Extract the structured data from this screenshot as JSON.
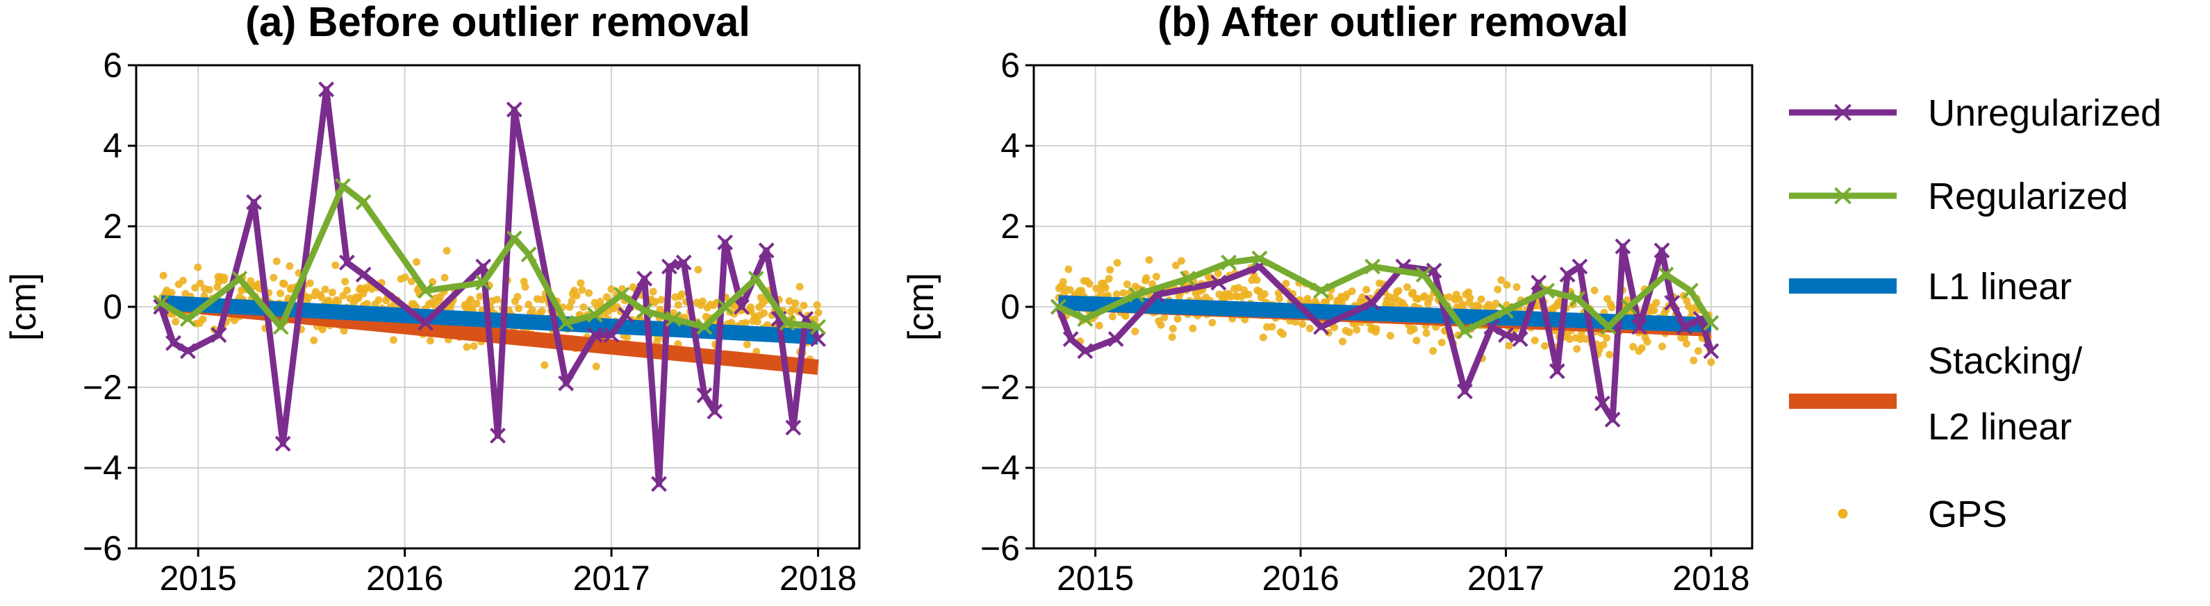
{
  "colors": {
    "unregularized": "#7b2d8e",
    "regularized": "#77ac30",
    "l1": "#0072bd",
    "l2": "#d95319",
    "gps": "#edb120",
    "grid": "#d3d3d3"
  },
  "legend": {
    "items": [
      {
        "key": "unregularized",
        "label": "Unregularized",
        "style": "line-x"
      },
      {
        "key": "regularized",
        "label": "Regularized",
        "style": "line-x"
      },
      {
        "key": "l1",
        "label": "L1 linear",
        "style": "thick"
      },
      {
        "key": "l2",
        "label_lines": [
          "Stacking/",
          "L2 linear"
        ],
        "style": "thick"
      },
      {
        "key": "gps",
        "label": "GPS",
        "style": "dot"
      }
    ]
  },
  "chart_data": [
    {
      "type": "line",
      "title": "(a) Before outlier removal",
      "ylabel": "[cm]",
      "xlim": [
        2014.7,
        2018.2
      ],
      "ylim": [
        -6,
        6
      ],
      "xticks": [
        2015,
        2016,
        2017,
        2018
      ],
      "yticks": [
        -6,
        -4,
        -2,
        0,
        2,
        4,
        6
      ],
      "xtick_labels": [
        "2015",
        "2016",
        "2017",
        "2018"
      ],
      "ytick_labels": [
        "−6",
        "−4",
        "−2",
        "0",
        "2",
        "4",
        "6"
      ],
      "grid": true,
      "series": [
        {
          "name": "Unregularized",
          "key": "unregularized",
          "marker": "x",
          "x": [
            2014.82,
            2014.88,
            2014.95,
            2015.1,
            2015.27,
            2015.41,
            2015.62,
            2015.72,
            2015.8,
            2016.1,
            2016.38,
            2016.45,
            2016.53,
            2016.78,
            2016.92,
            2017.0,
            2017.07,
            2017.16,
            2017.23,
            2017.28,
            2017.35,
            2017.45,
            2017.5,
            2017.55,
            2017.63,
            2017.75,
            2017.81,
            2017.88,
            2017.94,
            2018.0
          ],
          "y": [
            0.0,
            -0.9,
            -1.1,
            -0.7,
            2.6,
            -3.4,
            5.4,
            1.1,
            0.8,
            -0.4,
            1.0,
            -3.2,
            4.9,
            -1.9,
            -0.7,
            -0.7,
            -0.2,
            0.7,
            -4.4,
            1.0,
            1.1,
            -2.2,
            -2.6,
            1.6,
            0.0,
            1.4,
            -0.3,
            -3.0,
            -0.3,
            -0.8
          ]
        },
        {
          "name": "Regularized",
          "key": "regularized",
          "marker": "x",
          "x": [
            2014.82,
            2014.95,
            2015.2,
            2015.4,
            2015.7,
            2015.8,
            2016.1,
            2016.38,
            2016.53,
            2016.6,
            2016.78,
            2016.92,
            2017.05,
            2017.16,
            2017.3,
            2017.45,
            2017.55,
            2017.7,
            2017.85,
            2018.0
          ],
          "y": [
            0.1,
            -0.3,
            0.7,
            -0.5,
            3.0,
            2.6,
            0.4,
            0.6,
            1.7,
            1.3,
            -0.4,
            -0.2,
            0.3,
            -0.1,
            -0.3,
            -0.5,
            0.0,
            0.7,
            -0.4,
            -0.5
          ]
        },
        {
          "name": "L1 linear",
          "key": "l1",
          "x": [
            2014.82,
            2018.0
          ],
          "y": [
            0.1,
            -0.75
          ]
        },
        {
          "name": "Stacking/ L2 linear",
          "key": "l2",
          "x": [
            2014.82,
            2018.0
          ],
          "y": [
            0.1,
            -1.5
          ]
        }
      ],
      "gps": {
        "x_start": 2014.82,
        "x_end": 2018.0,
        "center": [
          0.25,
          -0.45
        ],
        "spread": 0.38,
        "count": 600
      }
    },
    {
      "type": "line",
      "title": "(b) After outlier removal",
      "ylabel": "[cm]",
      "xlim": [
        2014.7,
        2018.2
      ],
      "ylim": [
        -6,
        6
      ],
      "xticks": [
        2015,
        2016,
        2017,
        2018
      ],
      "yticks": [
        -6,
        -4,
        -2,
        0,
        2,
        4,
        6
      ],
      "xtick_labels": [
        "2015",
        "2016",
        "2017",
        "2018"
      ],
      "ytick_labels": [
        "−6",
        "−4",
        "−2",
        "0",
        "2",
        "4",
        "6"
      ],
      "grid": true,
      "series": [
        {
          "name": "Unregularized",
          "key": "unregularized",
          "marker": "x",
          "x": [
            2014.82,
            2014.88,
            2014.95,
            2015.1,
            2015.3,
            2015.6,
            2015.8,
            2016.1,
            2016.35,
            2016.5,
            2016.65,
            2016.8,
            2016.93,
            2017.0,
            2017.07,
            2017.16,
            2017.25,
            2017.3,
            2017.36,
            2017.47,
            2017.52,
            2017.57,
            2017.65,
            2017.76,
            2017.81,
            2017.87,
            2017.95,
            2018.0
          ],
          "y": [
            0.0,
            -0.8,
            -1.1,
            -0.8,
            0.3,
            0.6,
            1.0,
            -0.5,
            0.1,
            1.0,
            0.9,
            -2.1,
            -0.5,
            -0.7,
            -0.8,
            0.6,
            -1.6,
            0.8,
            1.0,
            -2.4,
            -2.8,
            1.5,
            -0.5,
            1.4,
            0.1,
            -0.5,
            -0.3,
            -1.1
          ]
        },
        {
          "name": "Regularized",
          "key": "regularized",
          "marker": "x",
          "x": [
            2014.82,
            2014.95,
            2015.2,
            2015.45,
            2015.65,
            2015.8,
            2016.1,
            2016.35,
            2016.6,
            2016.8,
            2017.0,
            2017.2,
            2017.35,
            2017.5,
            2017.6,
            2017.78,
            2017.9,
            2018.0
          ],
          "y": [
            0.0,
            -0.3,
            0.3,
            0.7,
            1.1,
            1.2,
            0.4,
            1.0,
            0.8,
            -0.6,
            -0.1,
            0.4,
            0.2,
            -0.5,
            0.0,
            0.8,
            0.4,
            -0.4
          ]
        },
        {
          "name": "L1 linear",
          "key": "l1",
          "x": [
            2014.82,
            2018.0
          ],
          "y": [
            0.1,
            -0.45
          ]
        },
        {
          "name": "Stacking/ L2 linear",
          "key": "l2",
          "x": [
            2014.82,
            2018.0
          ],
          "y": [
            0.1,
            -0.55
          ]
        }
      ],
      "gps": {
        "x_start": 2014.82,
        "x_end": 2018.0,
        "center": [
          0.25,
          -0.45
        ],
        "spread": 0.38,
        "count": 600
      }
    }
  ]
}
